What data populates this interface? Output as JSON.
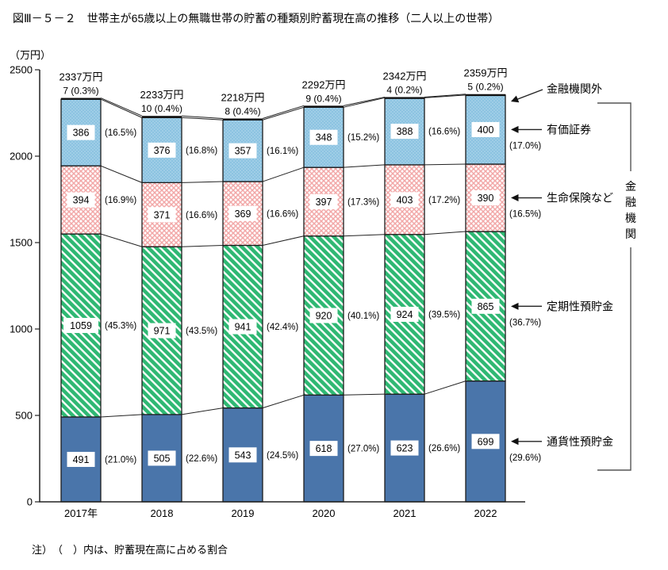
{
  "title": "図Ⅲ－５－２　世帯主が65歳以上の無職世帯の貯蓄の種類別貯蓄現在高の推移（二人以上の世帯）",
  "note": "注）　（　）内は、貯蓄現在高に占める割合",
  "y_axis": {
    "unit_label": "（万円）",
    "ticks": [
      0,
      500,
      1000,
      1500,
      2000,
      2500
    ]
  },
  "chart_data": {
    "type": "bar",
    "stacked": true,
    "title": "世帯主が65歳以上の無職世帯の貯蓄の種類別貯蓄現在高の推移（二人以上の世帯）",
    "unit": "万円",
    "ylim": [
      0,
      2500
    ],
    "categories": [
      "2017年",
      "2018",
      "2019",
      "2020",
      "2021",
      "2022"
    ],
    "totals": [
      2337,
      2233,
      2218,
      2292,
      2342,
      2359
    ],
    "series": [
      {
        "key": "demand-deposits",
        "name": "通貨性預貯金",
        "values": [
          491,
          505,
          543,
          618,
          623,
          699
        ],
        "pct": [
          "(21.0%)",
          "(22.6%)",
          "(24.5%)",
          "(27.0%)",
          "(26.6%)",
          "(29.6%)"
        ],
        "color": "#4A75AA"
      },
      {
        "key": "time-deposits",
        "name": "定期性預貯金",
        "values": [
          1059,
          971,
          941,
          920,
          924,
          865
        ],
        "pct": [
          "(45.3%)",
          "(43.5%)",
          "(42.4%)",
          "(40.1%)",
          "(39.5%)",
          "(36.7%)"
        ],
        "pattern": "diagonal-green",
        "color": "#2FB873"
      },
      {
        "key": "life-insurance",
        "name": "生命保険など",
        "values": [
          394,
          371,
          369,
          397,
          403,
          390
        ],
        "pct": [
          "(16.9%)",
          "(16.6%)",
          "(16.6%)",
          "(17.3%)",
          "(17.2%)",
          "(16.5%)"
        ],
        "pattern": "crosshatch-pink",
        "color": "#F2A8A8"
      },
      {
        "key": "securities",
        "name": "有価証券",
        "values": [
          386,
          376,
          357,
          348,
          388,
          400
        ],
        "pct": [
          "(16.5%)",
          "(16.8%)",
          "(16.1%)",
          "(15.2%)",
          "(16.6%)",
          "(17.0%)"
        ],
        "pattern": "dots-blue",
        "color": "#8CC3E1"
      },
      {
        "key": "outside-financial-institutions",
        "name": "金融機関外",
        "values": [
          7,
          10,
          8,
          9,
          4,
          5
        ],
        "pct": [
          "(0.3%)",
          "(0.4%)",
          "(0.4%)",
          "(0.4%)",
          "(0.2%)",
          "(0.2%)"
        ],
        "color": "#111111"
      }
    ],
    "bracket_label": "金融機関",
    "legend_position": "right"
  }
}
